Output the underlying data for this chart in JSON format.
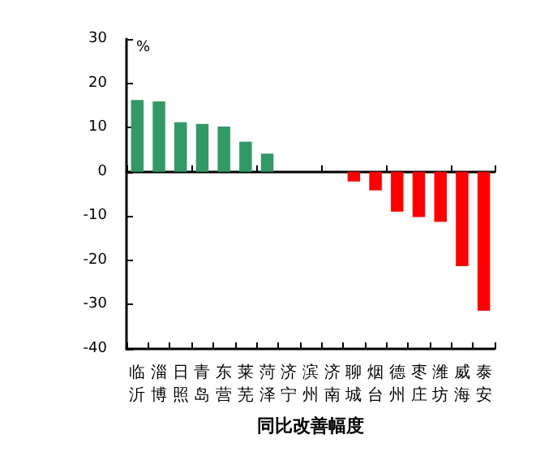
{
  "chart_data": {
    "type": "bar",
    "xlabel": "同比改善幅度",
    "ylabel": "%",
    "categories": [
      "临沂",
      "淄博",
      "日照",
      "青岛",
      "东营",
      "莱芜",
      "菏泽",
      "济宁",
      "滨州",
      "济南",
      "聊城",
      "烟台",
      "德州",
      "枣庄",
      "潍坊",
      "威海",
      "泰安"
    ],
    "values": [
      16.2,
      15.9,
      11.2,
      10.8,
      10.2,
      6.8,
      4.1,
      0,
      0,
      0,
      -2.2,
      -4.2,
      -9.0,
      -10.2,
      -11.3,
      -21.3,
      -31.4
    ],
    "colors": [
      "#339966",
      "#339966",
      "#339966",
      "#339966",
      "#339966",
      "#339966",
      "#339966",
      "#339966",
      "#339966",
      "#339966",
      "#ff0000",
      "#ff0000",
      "#ff0000",
      "#ff0000",
      "#ff0000",
      "#ff0000",
      "#ff0000"
    ],
    "ylim": [
      -40,
      30
    ],
    "yticks": [
      -40,
      -30,
      -20,
      -10,
      0,
      10,
      20,
      30
    ]
  }
}
